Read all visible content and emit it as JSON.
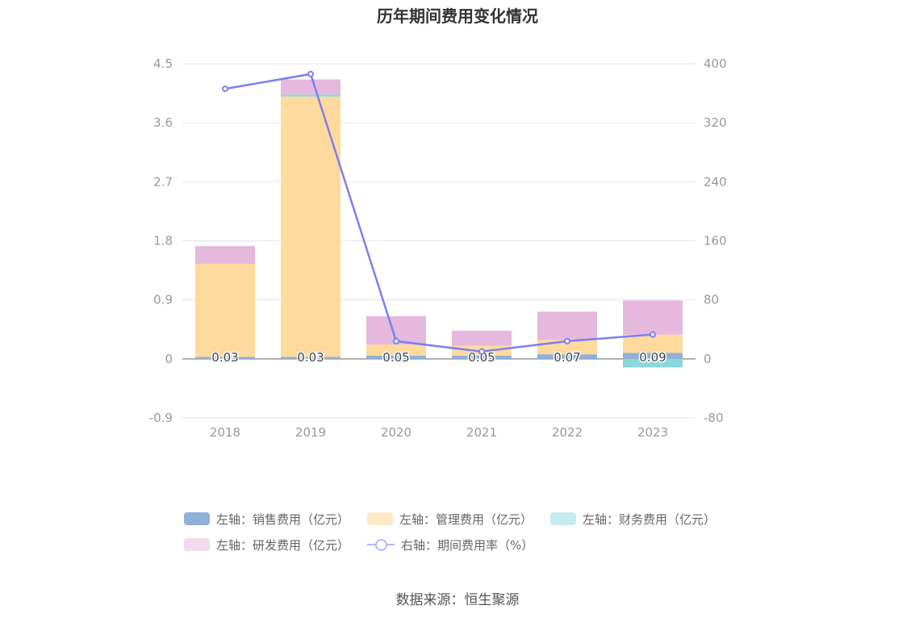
{
  "chart_data": {
    "type": "bar",
    "title": "历年期间费用变化情况",
    "categories": [
      "2018",
      "2019",
      "2020",
      "2021",
      "2022",
      "2023"
    ],
    "stacked": true,
    "y_left": {
      "ticks": [
        "4.5",
        "3.6",
        "2.7",
        "1.8",
        "0.9",
        "0",
        "-0.9"
      ],
      "ylim": [
        -0.9,
        4.5
      ]
    },
    "y_right": {
      "ticks": [
        "400",
        "320",
        "240",
        "160",
        "80",
        "0",
        "-80"
      ],
      "ylim": [
        -80,
        400
      ]
    },
    "series": [
      {
        "name": "左轴：销售费用（亿元）",
        "axis": "left",
        "type": "bar",
        "color": "#8fb0d9",
        "values": [
          0.03,
          0.03,
          0.05,
          0.05,
          0.07,
          0.09
        ]
      },
      {
        "name": "左轴：管理费用（亿元）",
        "axis": "left",
        "type": "bar",
        "color": "#ffd99e",
        "values": [
          1.42,
          3.97,
          0.17,
          0.15,
          0.22,
          0.28
        ]
      },
      {
        "name": "左轴：财务费用（亿元）",
        "axis": "left",
        "type": "bar",
        "color": "#8ad7dc",
        "values": [
          0.0,
          0.03,
          0.0,
          0.0,
          0.0,
          -0.13
        ]
      },
      {
        "name": "左轴：研发费用（亿元）",
        "axis": "left",
        "type": "bar",
        "color": "#e5b8dd",
        "values": [
          0.27,
          0.23,
          0.43,
          0.23,
          0.43,
          0.52
        ]
      },
      {
        "name": "右轴：期间费用率（%）",
        "axis": "right",
        "type": "line",
        "color": "#7b80f0",
        "values": [
          366,
          386,
          24,
          10,
          24,
          33
        ]
      }
    ],
    "data_labels": [
      "0.03",
      "0.03",
      "0.05",
      "0.05",
      "0.07",
      "0.09"
    ],
    "legend_position": "bottom",
    "grid": true
  },
  "legend": {
    "row1": [
      {
        "label": "左轴：销售费用（亿元）",
        "color": "#8fb0d9",
        "kind": "bar"
      },
      {
        "label": "左轴：管理费用（亿元）",
        "color": "#ffe8c5",
        "kind": "bar"
      },
      {
        "label": "左轴：财务费用（亿元）",
        "color": "#c5ecee",
        "kind": "bar"
      }
    ],
    "row2": [
      {
        "label": "左轴：研发费用（亿元）",
        "color": "#f2dbee",
        "kind": "bar"
      },
      {
        "label": "右轴：期间费用率（%）",
        "color": "#b3b7f5",
        "kind": "line"
      }
    ]
  },
  "source": "数据来源：恒生聚源"
}
